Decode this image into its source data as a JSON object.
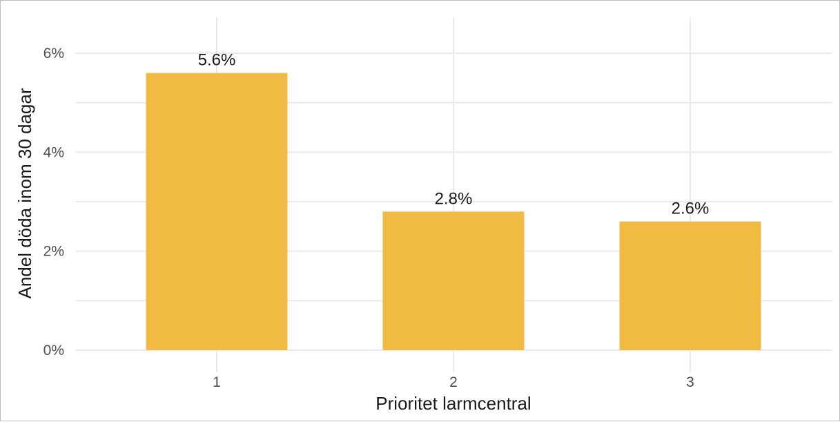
{
  "chart_data": {
    "type": "bar",
    "categories": [
      "1",
      "2",
      "3"
    ],
    "values": [
      5.6,
      2.8,
      2.6
    ],
    "data_labels": [
      "5.6%",
      "2.8%",
      "2.6%"
    ],
    "xlabel": "Prioritet larmcentral",
    "ylabel": "Andel döda inom 30 dagar",
    "ylim": [
      0,
      6.5
    ],
    "y_ticks": [
      0,
      2,
      4,
      6
    ],
    "y_tick_labels": [
      "0%",
      "2%",
      "4%",
      "6%"
    ],
    "bar_color": "#F0BA43",
    "grid": true,
    "legend": "none"
  }
}
